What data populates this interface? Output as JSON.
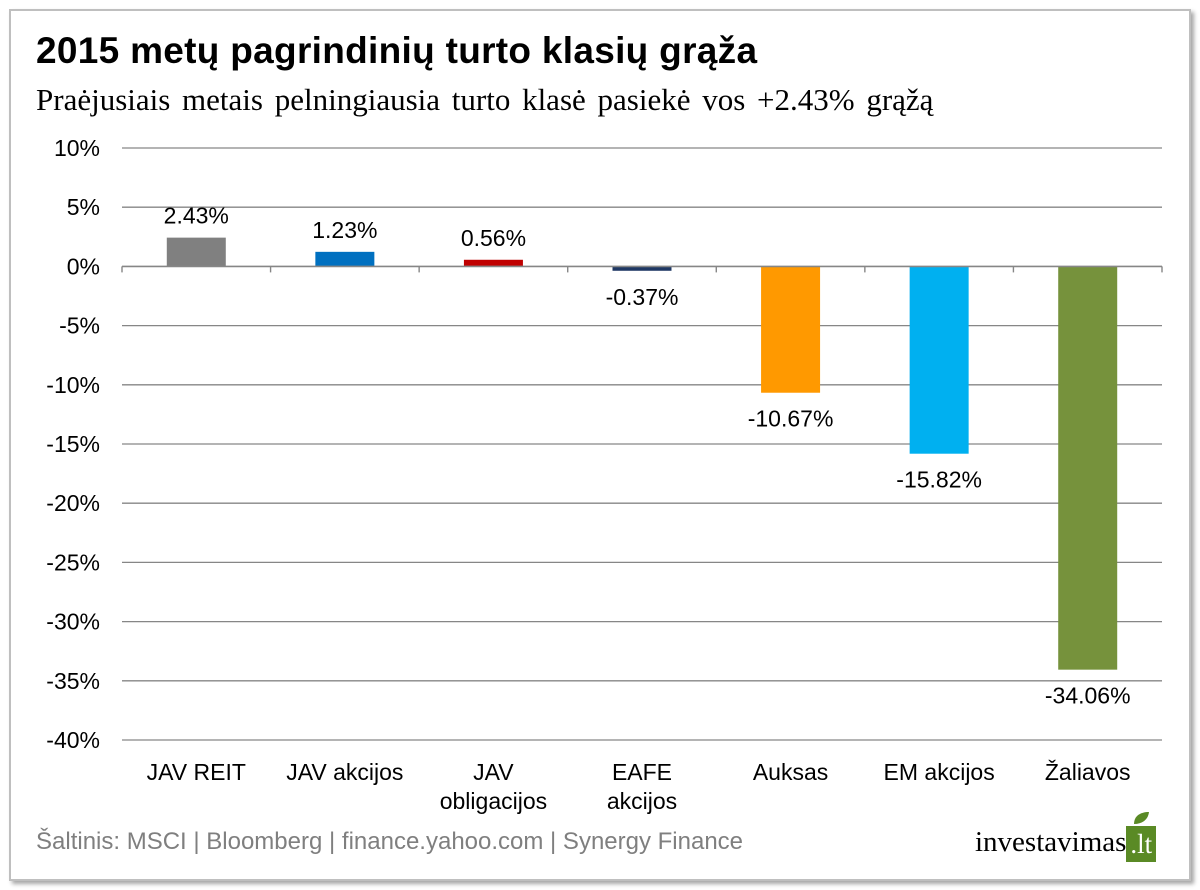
{
  "title": "2015 metų pagrindinių turto klasių grąža",
  "subtitle": "Praėjusiais metais pelningiausia turto klasė pasiekė vos +2.43% grąžą",
  "source": "Šaltinis: MSCI | Bloomberg | finance.yahoo.com | Synergy Finance",
  "logo": {
    "text": "investavimas",
    "tld": ".lt",
    "icon": "leaf-icon",
    "color": "#5a8a25"
  },
  "chart_data": {
    "type": "bar",
    "title": "2015 metų pagrindinių turto klasių grąža",
    "subtitle": "Praėjusiais metais pelningiausia turto klasė pasiekė vos +2.43% grąžą",
    "xlabel": "",
    "ylabel": "",
    "ylim": [
      -40,
      10
    ],
    "yticks": [
      10,
      5,
      0,
      -5,
      -10,
      -15,
      -20,
      -25,
      -30,
      -35,
      -40
    ],
    "ytick_labels": [
      "10%",
      "5%",
      "0%",
      "-5%",
      "-10%",
      "-15%",
      "-20%",
      "-25%",
      "-30%",
      "-35%",
      "-40%"
    ],
    "grid": true,
    "categories": [
      "JAV REIT",
      "JAV akcijos",
      "JAV obligacijos",
      "EAFE akcijos",
      "Auksas",
      "EM akcijos",
      "Žaliavos"
    ],
    "category_labels": [
      [
        "JAV REIT"
      ],
      [
        "JAV akcijos"
      ],
      [
        "JAV",
        "obligacijos"
      ],
      [
        "EAFE",
        "akcijos"
      ],
      [
        "Auksas"
      ],
      [
        "EM akcijos"
      ],
      [
        "Žaliavos"
      ]
    ],
    "values": [
      2.43,
      1.23,
      0.56,
      -0.37,
      -10.67,
      -15.82,
      -34.06
    ],
    "data_labels": [
      "2.43%",
      "1.23%",
      "0.56%",
      "-0.37%",
      "-10.67%",
      "-15.82%",
      "-34.06%"
    ],
    "colors": [
      "#808080",
      "#0070c0",
      "#c00000",
      "#1f3864",
      "#ff9900",
      "#00b0f0",
      "#76923c"
    ]
  }
}
